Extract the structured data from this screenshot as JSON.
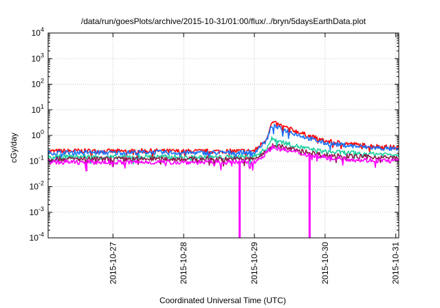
{
  "chart_data": {
    "type": "line",
    "title": "/data/run/goesPlots/archive/2015-10-31/01:00/flux/../bryn/5daysEarthData.plot",
    "xlabel": "Coordinated Universal Time (UTC)",
    "ylabel": "cGy/day",
    "yscale": "log",
    "ylim": [
      0.0001,
      10000
    ],
    "xlim": [
      "2015-10-26T02:00",
      "2015-10-31T01:00"
    ],
    "grid": true,
    "y_ticks": [
      {
        "value": 0.0001,
        "mantissa": "10",
        "exp": "-4"
      },
      {
        "value": 0.001,
        "mantissa": "10",
        "exp": "-3"
      },
      {
        "value": 0.01,
        "mantissa": "10",
        "exp": "-2"
      },
      {
        "value": 0.1,
        "mantissa": "10",
        "exp": "-1"
      },
      {
        "value": 1,
        "mantissa": "10",
        "exp": "0"
      },
      {
        "value": 10,
        "mantissa": "10",
        "exp": "1"
      },
      {
        "value": 100,
        "mantissa": "10",
        "exp": "2"
      },
      {
        "value": 1000,
        "mantissa": "10",
        "exp": "3"
      },
      {
        "value": 10000,
        "mantissa": "10",
        "exp": "4"
      }
    ],
    "x_ticks": [
      "2015-10-27",
      "2015-10-28",
      "2015-10-29",
      "2015-10-30",
      "2015-10-31"
    ],
    "x": [
      "2015-10-26T02:00",
      "2015-10-26T12:00",
      "2015-10-27T00:00",
      "2015-10-27T12:00",
      "2015-10-28T00:00",
      "2015-10-28T12:00",
      "2015-10-29T00:00",
      "2015-10-29T04:00",
      "2015-10-29T06:00",
      "2015-10-29T12:00",
      "2015-10-29T18:00",
      "2015-10-30T00:00",
      "2015-10-30T12:00",
      "2015-10-31T01:00"
    ],
    "series": [
      {
        "color": "#ff0000",
        "values": [
          0.24,
          0.25,
          0.24,
          0.25,
          0.24,
          0.24,
          0.25,
          0.7,
          3.2,
          1.8,
          1.0,
          0.6,
          0.42,
          0.33
        ],
        "spikes": []
      },
      {
        "color": "#1a73ff",
        "values": [
          0.21,
          0.22,
          0.21,
          0.22,
          0.21,
          0.21,
          0.22,
          0.6,
          2.4,
          1.4,
          0.8,
          0.5,
          0.36,
          0.28
        ],
        "spikes": []
      },
      {
        "color": "#1fd0a0",
        "values": [
          0.14,
          0.15,
          0.14,
          0.15,
          0.14,
          0.14,
          0.15,
          0.3,
          0.75,
          0.45,
          0.3,
          0.23,
          0.2,
          0.18
        ],
        "spikes": []
      },
      {
        "color": "#8b1a4a",
        "values": [
          0.12,
          0.12,
          0.12,
          0.12,
          0.12,
          0.12,
          0.12,
          0.22,
          0.45,
          0.3,
          0.22,
          0.17,
          0.15,
          0.13
        ],
        "spikes": []
      },
      {
        "color": "#ff00ff",
        "values": [
          0.09,
          0.09,
          0.09,
          0.09,
          0.09,
          0.09,
          0.09,
          0.2,
          0.35,
          0.24,
          0.18,
          0.14,
          0.11,
          0.1
        ],
        "spikes": [
          {
            "x": "2015-10-28T19:00",
            "value": 0.0001
          },
          {
            "x": "2015-10-29T18:45",
            "value": 0.0001
          },
          {
            "x": "2015-10-26T15:00",
            "value": 0.04
          }
        ]
      }
    ]
  }
}
